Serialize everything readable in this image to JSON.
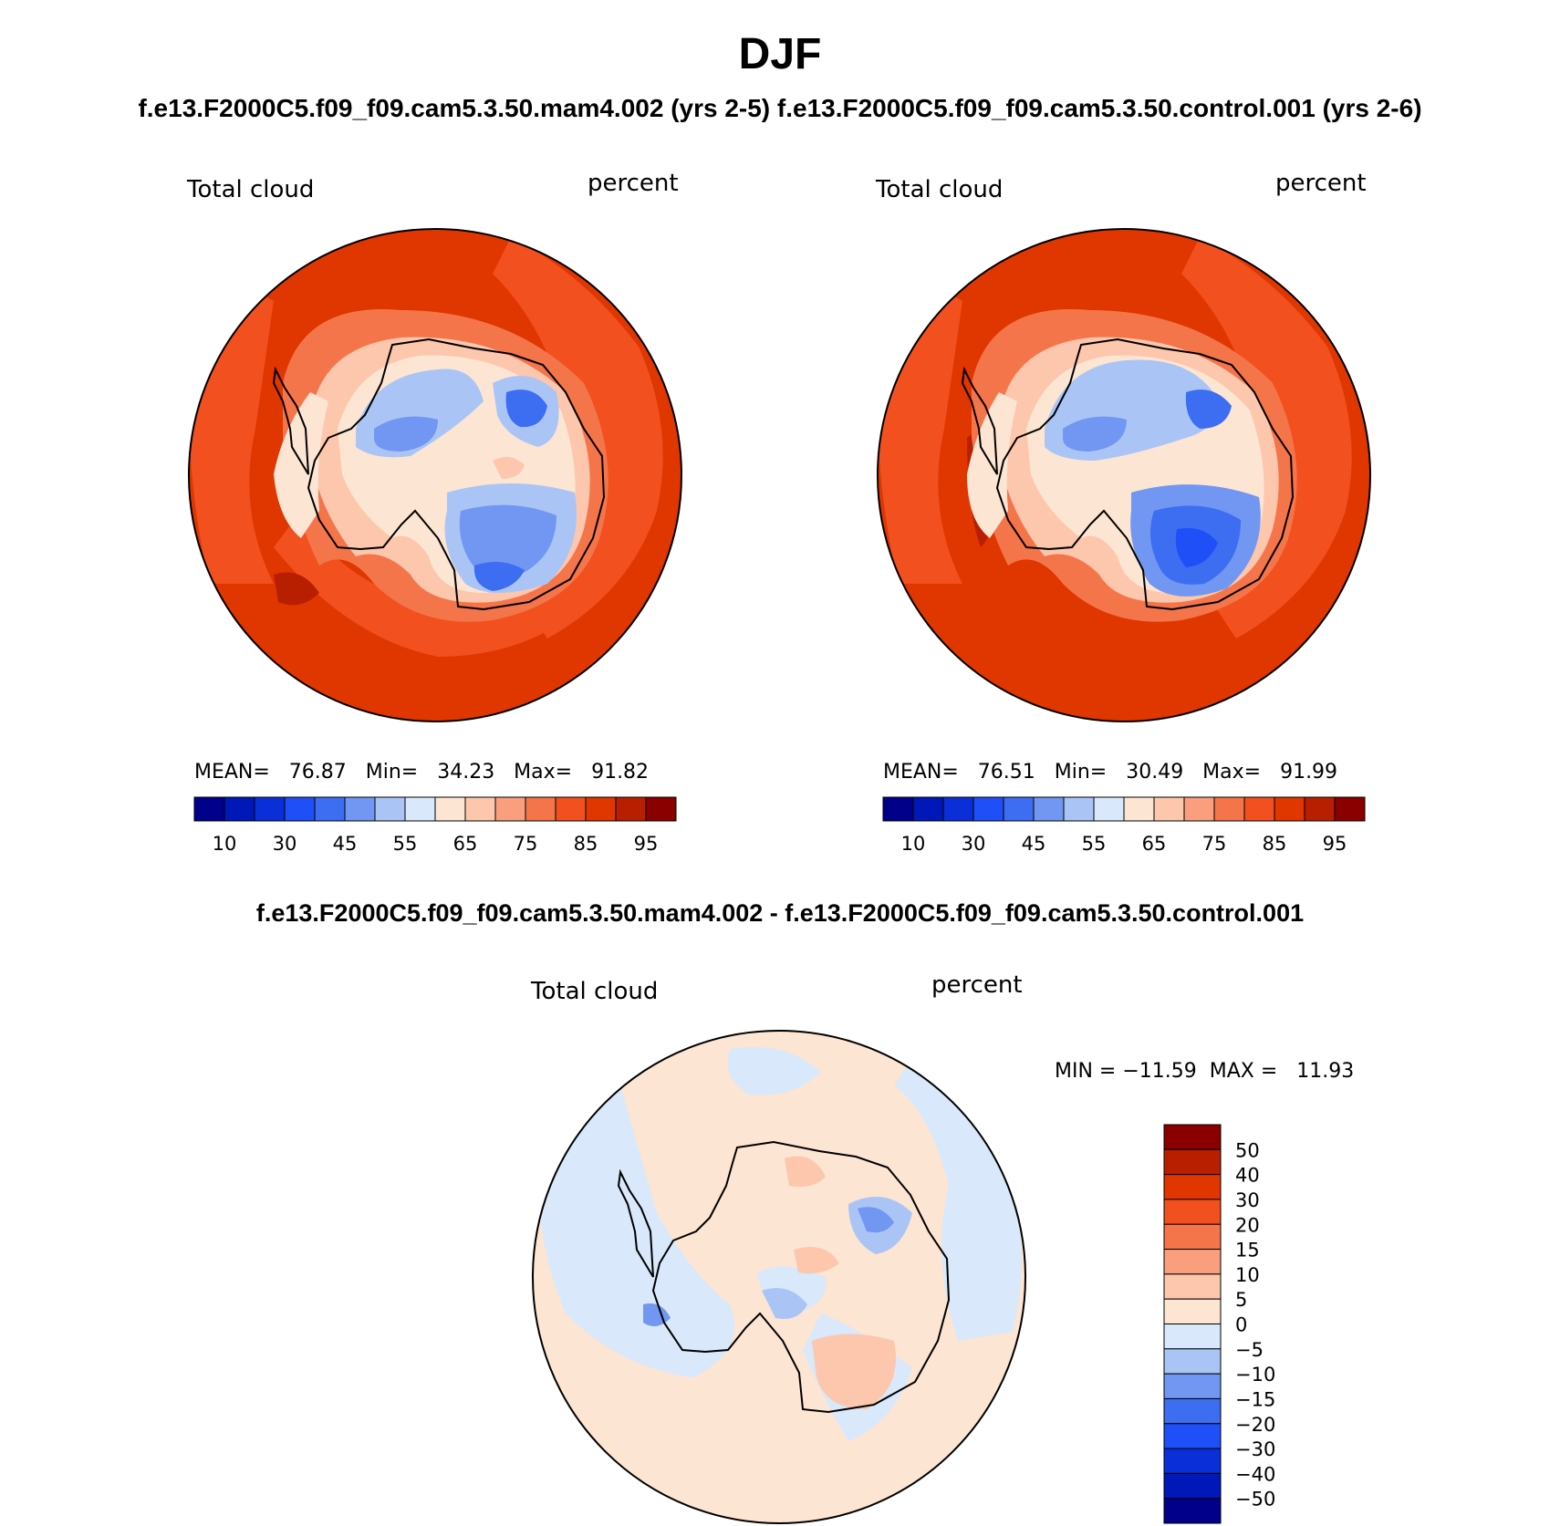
{
  "figure": {
    "season": "DJF",
    "runs_title": "f.e13.F2000C5.f09_f09.cam5.3.50.mam4.002 (yrs 2-5) f.e13.F2000C5.f09_f09.cam5.3.50.control.001 (yrs 2-6)",
    "diff_title": "f.e13.F2000C5.f09_f09.cam5.3.50.mam4.002 - f.e13.F2000C5.f09_f09.cam5.3.50.control.001"
  },
  "panels": [
    {
      "variable": "Total cloud",
      "units": "percent",
      "stats": "MEAN=   76.87   Min=   34.23   Max=   91.82"
    },
    {
      "variable": "Total cloud",
      "units": "percent",
      "stats": "MEAN=   76.51   Min=   30.49   Max=   91.99"
    }
  ],
  "diff_panel": {
    "variable": "Total cloud",
    "units": "percent",
    "stats": "MIN = −11.59  MAX =   11.93"
  },
  "colorbar_top": {
    "tick_labels": [
      "10",
      "30",
      "45",
      "55",
      "65",
      "75",
      "85",
      "95"
    ],
    "colors": [
      "#00008a",
      "#0018b8",
      "#0a2fd8",
      "#1f4ff7",
      "#3d6ef2",
      "#7197f2",
      "#aac5f5",
      "#d9e8fa",
      "#fde5d3",
      "#fcc7ad",
      "#f99f7e",
      "#f5754b",
      "#f2501f",
      "#e03600",
      "#b81f00",
      "#8a0000"
    ]
  },
  "colorbar_diff": {
    "tick_labels": [
      "50",
      "40",
      "30",
      "20",
      "15",
      "10",
      "5",
      "0",
      "−5",
      "−10",
      "−15",
      "−20",
      "−30",
      "−40",
      "−50"
    ],
    "colors": [
      "#8a0000",
      "#b81f00",
      "#e03600",
      "#f2501f",
      "#f5754b",
      "#f99f7e",
      "#fcc7ad",
      "#fde5d3",
      "#d9e8fa",
      "#aac5f5",
      "#7197f2",
      "#3d6ef2",
      "#1f4ff7",
      "#0a2fd8",
      "#0018b8",
      "#00008a"
    ]
  }
}
